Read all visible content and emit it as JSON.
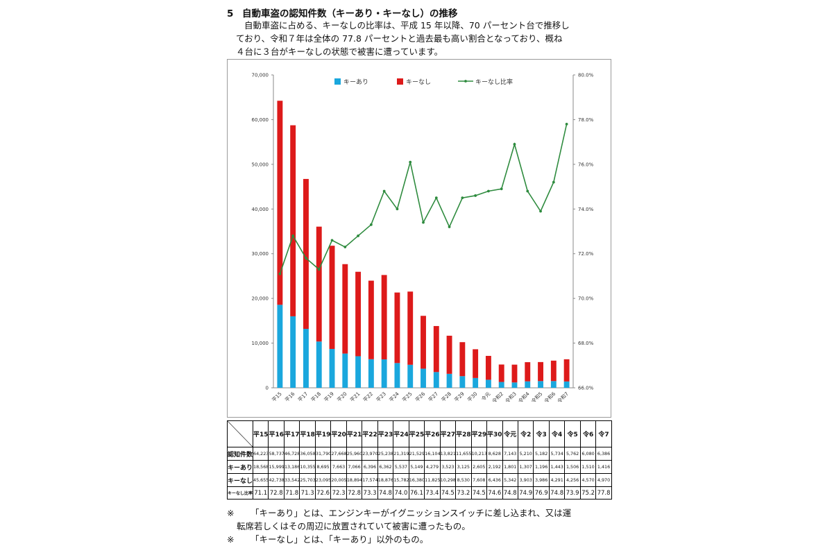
{
  "heading": {
    "num": "5",
    "title": "自動車盗の認知件数（キーあり・キーなし）の推移"
  },
  "intro": {
    "line1": "自動車盗に占める、キーなしの比率は、平成 15 年以降、70 パーセント台で推移し",
    "line2": "ており、令和７年は全体の 77.8 パーセントと過去最も高い割合となっており、概ね",
    "line3": "４台に３台がキーなしの状態で被害に遭っています。"
  },
  "chart_data": {
    "type": "bar",
    "stacked": true,
    "categories": [
      "平15",
      "平16",
      "平17",
      "平18",
      "平19",
      "平20",
      "平21",
      "平22",
      "平23",
      "平24",
      "平25",
      "平26",
      "平27",
      "平28",
      "平29",
      "平30",
      "令元",
      "令和2",
      "令和3",
      "令和4",
      "令和5",
      "令和6",
      "令和7"
    ],
    "series": [
      {
        "name": "キーあり",
        "type": "bar",
        "axis": "left",
        "color": "#1aa7dd",
        "values": [
          18568,
          15999,
          13186,
          10355,
          8695,
          7663,
          7066,
          6396,
          6362,
          5537,
          5149,
          4279,
          3523,
          3125,
          2605,
          2192,
          1801,
          1307,
          1196,
          1443,
          1506,
          1510,
          1416
        ]
      },
      {
        "name": "キーなし",
        "type": "bar",
        "axis": "left",
        "color": "#dd1a1a",
        "values": [
          45655,
          42738,
          33542,
          25703,
          23095,
          20005,
          18894,
          17574,
          18876,
          15782,
          16380,
          11825,
          10298,
          8530,
          7608,
          6436,
          5342,
          3903,
          3986,
          4291,
          4256,
          4570,
          4970
        ]
      },
      {
        "name": "キーなし比率",
        "type": "line",
        "axis": "right",
        "color": "#2e8b3e",
        "values": [
          71.1,
          72.8,
          71.8,
          71.3,
          72.6,
          72.3,
          72.8,
          73.3,
          74.8,
          74.0,
          76.1,
          73.4,
          74.5,
          73.2,
          74.5,
          74.6,
          74.8,
          74.9,
          76.9,
          74.8,
          73.9,
          75.2,
          77.8
        ]
      }
    ],
    "y_left": {
      "min": 0,
      "max": 70000,
      "step": 10000,
      "ticks": [
        "0",
        "10,000",
        "20,000",
        "30,000",
        "40,000",
        "50,000",
        "60,000",
        "70,000"
      ]
    },
    "y_right": {
      "min": 66,
      "max": 80,
      "step": 2,
      "ticks": [
        "66.0%",
        "68.0%",
        "70.0%",
        "72.0%",
        "74.0%",
        "76.0%",
        "78.0%",
        "80.0%"
      ]
    },
    "legend_position": "top-center",
    "grid": false
  },
  "table": {
    "columns": [
      "平15",
      "平16",
      "平17",
      "平18",
      "平19",
      "平20",
      "平21",
      "平22",
      "平23",
      "平24",
      "平25",
      "平26",
      "平27",
      "平28",
      "平29",
      "平30",
      "令元",
      "令2",
      "令3",
      "令4",
      "令5",
      "令6",
      "令7"
    ],
    "rows": [
      {
        "label": "認知件数",
        "values": [
          "64,223",
          "58,737",
          "46,728",
          "36,058",
          "31,790",
          "27,668",
          "25,960",
          "23,970",
          "25,238",
          "21,319",
          "21,529",
          "16,104",
          "13,821",
          "11,655",
          "10,213",
          "8,628",
          "7,143",
          "5,210",
          "5,182",
          "5,734",
          "5,762",
          "6,080",
          "6,386"
        ]
      },
      {
        "label": "キーあり",
        "values": [
          "18,568",
          "15,999",
          "13,186",
          "10,355",
          "8,695",
          "7,663",
          "7,066",
          "6,396",
          "6,362",
          "5,537",
          "5,149",
          "4,279",
          "3,523",
          "3,125",
          "2,605",
          "2,192",
          "1,801",
          "1,307",
          "1,196",
          "1,443",
          "1,506",
          "1,510",
          "1,416"
        ]
      },
      {
        "label": "キーなし",
        "values": [
          "45,655",
          "42,738",
          "33,542",
          "25,703",
          "23,095",
          "20,005",
          "18,894",
          "17,574",
          "18,876",
          "15,782",
          "16,380",
          "11,825",
          "10,298",
          "8,530",
          "7,608",
          "6,436",
          "5,342",
          "3,903",
          "3,986",
          "4,291",
          "4,256",
          "4,570",
          "4,970"
        ]
      },
      {
        "label": "キーなし比率",
        "values": [
          "71.1",
          "72.8",
          "71.8",
          "71.3",
          "72.6",
          "72.3",
          "72.8",
          "73.3",
          "74.8",
          "74.0",
          "76.1",
          "73.4",
          "74.5",
          "73.2",
          "74.5",
          "74.6",
          "74.8",
          "74.9",
          "76.9",
          "74.8",
          "73.9",
          "75.2",
          "77.8"
        ]
      }
    ]
  },
  "notes": {
    "mark": "※",
    "note1a": "「キーあり」とは、エンジンキーがイグニッションスイッチに差し込まれ、又は運",
    "note1b": "転席若しくはその周辺に放置されていて被害に遭ったもの。",
    "note2": "「キーなし」とは、「キーあり」以外のもの。"
  }
}
